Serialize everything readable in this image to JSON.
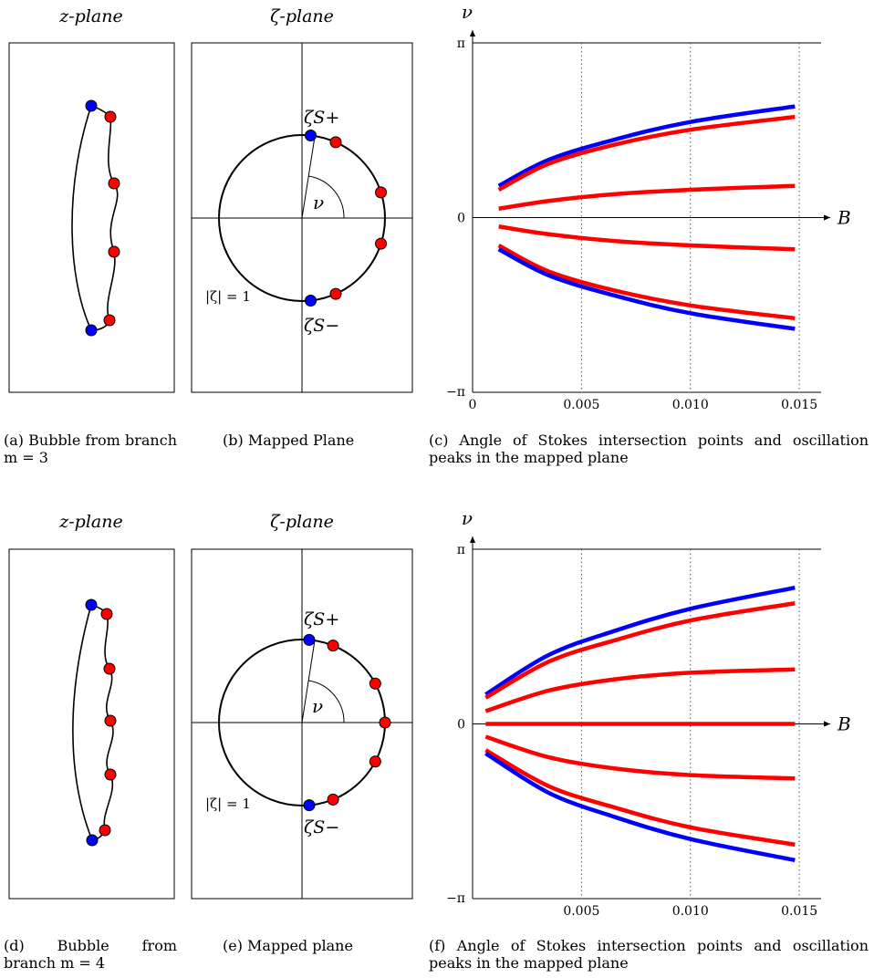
{
  "colors": {
    "blue": "#0000ff",
    "red": "#ff0000",
    "black": "#000000"
  },
  "panels": [
    {
      "z_title": "z-plane",
      "zeta_title": "ζ-plane",
      "unit_circle_label": "|ζ| = 1",
      "zeta_upper_label": "ζS+",
      "zeta_lower_label": "ζS−",
      "angle_label": "ν",
      "zeta_points": [
        {
          "angle_deg": 84,
          "color": "blue"
        },
        {
          "angle_deg": 66,
          "color": "red"
        },
        {
          "angle_deg": 18,
          "color": "red"
        },
        {
          "angle_deg": -18,
          "color": "red"
        },
        {
          "angle_deg": -66,
          "color": "red"
        },
        {
          "angle_deg": -84,
          "color": "blue"
        }
      ],
      "captions": {
        "a": "(a)  Bubble  from branch m = 3",
        "b": "(b) Mapped Plane",
        "c": "(c) Angle of Stokes intersection points and oscillation peaks in the mapped plane"
      },
      "chart_data": {
        "type": "line",
        "xlabel": "B",
        "ylabel": "ν",
        "xlim": [
          0,
          0.016
        ],
        "ylim": [
          -3.14159,
          3.14159
        ],
        "x_ticks": [
          "0",
          "0.005",
          "0.010",
          "0.015"
        ],
        "y_ticks": [
          "π",
          "0",
          "−π"
        ],
        "vertical_dotted_lines_at": [
          0.005,
          0.01,
          0.015
        ],
        "series": [
          {
            "color": "blue",
            "x": [
              0.0012,
              0.0035,
              0.0065,
              0.01,
              0.0148
            ],
            "y": [
              0.57,
              1.04,
              1.4,
              1.72,
              2.0
            ]
          },
          {
            "color": "red",
            "x": [
              0.0012,
              0.0035,
              0.0065,
              0.01,
              0.0148
            ],
            "y": [
              0.5,
              0.97,
              1.31,
              1.58,
              1.81
            ]
          },
          {
            "color": "red",
            "x": [
              0.0012,
              0.0035,
              0.0065,
              0.01,
              0.0148
            ],
            "y": [
              0.16,
              0.3,
              0.42,
              0.5,
              0.57
            ]
          },
          {
            "color": "red",
            "x": [
              0.0012,
              0.0035,
              0.0065,
              0.01,
              0.0148
            ],
            "y": [
              -0.16,
              -0.3,
              -0.42,
              -0.5,
              -0.57
            ]
          },
          {
            "color": "red",
            "x": [
              0.0012,
              0.0035,
              0.0065,
              0.01,
              0.0148
            ],
            "y": [
              -0.5,
              -0.97,
              -1.31,
              -1.58,
              -1.81
            ]
          },
          {
            "color": "blue",
            "x": [
              0.0012,
              0.0035,
              0.0065,
              0.01,
              0.0148
            ],
            "y": [
              -0.57,
              -1.04,
              -1.4,
              -1.72,
              -2.0
            ]
          }
        ]
      }
    },
    {
      "z_title": "z-plane",
      "zeta_title": "ζ-plane",
      "unit_circle_label": "|ζ| = 1",
      "zeta_upper_label": "ζS+",
      "zeta_lower_label": "ζS−",
      "angle_label": "ν",
      "zeta_points": [
        {
          "angle_deg": 85,
          "color": "blue"
        },
        {
          "angle_deg": 68,
          "color": "red"
        },
        {
          "angle_deg": 28,
          "color": "red"
        },
        {
          "angle_deg": 0,
          "color": "red"
        },
        {
          "angle_deg": -28,
          "color": "red"
        },
        {
          "angle_deg": -68,
          "color": "red"
        },
        {
          "angle_deg": -85,
          "color": "blue"
        }
      ],
      "captions": {
        "d": "(d)  Bubble  from branch m = 4",
        "e": "(e) Mapped plane",
        "f": "(f) Angle of Stokes intersection points and oscillation peaks in the mapped plane"
      },
      "chart_data": {
        "type": "line",
        "xlabel": "B",
        "ylabel": "ν",
        "xlim": [
          0,
          0.016
        ],
        "ylim": [
          -3.14159,
          3.14159
        ],
        "x_ticks": [
          "0.005",
          "0.010",
          "0.015"
        ],
        "y_ticks": [
          "π",
          "0",
          "−π"
        ],
        "vertical_dotted_lines_at": [
          0.005,
          0.01,
          0.015
        ],
        "series": [
          {
            "color": "blue",
            "x": [
              0.0006,
              0.0035,
              0.0065,
              0.01,
              0.0148
            ],
            "y": [
              0.53,
              1.24,
              1.67,
              2.07,
              2.45
            ]
          },
          {
            "color": "red",
            "x": [
              0.0006,
              0.0035,
              0.0065,
              0.01,
              0.0148
            ],
            "y": [
              0.47,
              1.12,
              1.5,
              1.86,
              2.17
            ]
          },
          {
            "color": "red",
            "x": [
              0.0006,
              0.0035,
              0.0065,
              0.01,
              0.0148
            ],
            "y": [
              0.23,
              0.6,
              0.8,
              0.92,
              0.98
            ]
          },
          {
            "color": "red",
            "x": [
              0.0006,
              0.0035,
              0.0065,
              0.01,
              0.0148
            ],
            "y": [
              0,
              0,
              0,
              0,
              0
            ]
          },
          {
            "color": "red",
            "x": [
              0.0006,
              0.0035,
              0.0065,
              0.01,
              0.0148
            ],
            "y": [
              -0.23,
              -0.6,
              -0.8,
              -0.92,
              -0.98
            ]
          },
          {
            "color": "red",
            "x": [
              0.0006,
              0.0035,
              0.0065,
              0.01,
              0.0148
            ],
            "y": [
              -0.47,
              -1.12,
              -1.5,
              -1.86,
              -2.17
            ]
          },
          {
            "color": "blue",
            "x": [
              0.0006,
              0.0035,
              0.0065,
              0.01,
              0.0148
            ],
            "y": [
              -0.53,
              -1.24,
              -1.67,
              -2.07,
              -2.45
            ]
          }
        ]
      }
    }
  ]
}
